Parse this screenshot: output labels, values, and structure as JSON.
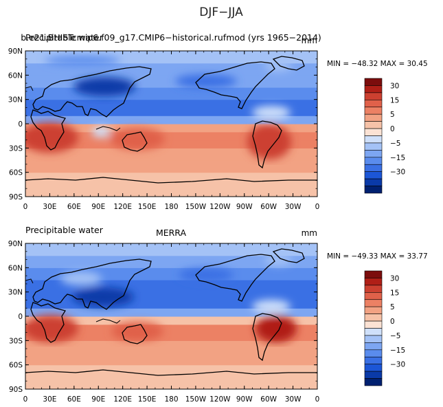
{
  "figure_title": "DJF−JJA",
  "colors": {
    "levels": [
      "#002070",
      "#0a3aa8",
      "#1c56d6",
      "#3a70e4",
      "#5a8ced",
      "#7da6f2",
      "#a4c2f6",
      "#cfe0fa",
      "#fbe2d4",
      "#f6c2a8",
      "#f2a283",
      "#ec8164",
      "#e0614a",
      "#cc4030",
      "#b01f17",
      "#7c0d0d"
    ],
    "land_outline": "#000000",
    "background": "#ffffff"
  },
  "colorbar_labels": [
    "30",
    "15",
    "5",
    "0",
    "−5",
    "−15",
    "−30"
  ],
  "panels": [
    {
      "id": "model",
      "left_title": "Precipitable water",
      "center_title": "b.e21.BHISTcmip6.f09_g17.CMIP6−historical.rufmod (yrs 1965−2014)",
      "units": "mm",
      "stats": "MIN = −48.32  MAX =  30.45"
    },
    {
      "id": "obs",
      "left_title": "Precipitable water",
      "center_title": "MERRA",
      "units": "mm",
      "stats": "MIN = −49.33  MAX =  33.77"
    }
  ],
  "chart_data": [
    {
      "type": "heatmap",
      "title": "DJF−JJA",
      "subtitle": "b.e21.BHISTcmip6.f09_g17.CMIP6−historical.rufmod (yrs 1965−2014)",
      "variable": "Precipitable water",
      "units": "mm",
      "x_ticks": [
        "0",
        "30E",
        "60E",
        "90E",
        "120E",
        "150E",
        "180",
        "150W",
        "120W",
        "90W",
        "60W",
        "30W",
        "0"
      ],
      "y_ticks": [
        "90N",
        "60N",
        "30N",
        "0",
        "30S",
        "60S",
        "90S"
      ],
      "xlim": [
        0,
        360
      ],
      "ylim": [
        -90,
        90
      ],
      "levels": [
        -35,
        -30,
        -25,
        -20,
        -15,
        -10,
        -5,
        -2.5,
        0,
        2.5,
        5,
        10,
        15,
        20,
        25,
        30,
        35
      ],
      "colorbar_ticks": [
        30,
        15,
        5,
        0,
        -5,
        -15,
        -30
      ],
      "zonal_mean_estimate": {
        "lat": [
          -90,
          -75,
          -60,
          -45,
          -30,
          -20,
          -10,
          0,
          10,
          20,
          30,
          45,
          60,
          75,
          90
        ],
        "value": [
          2,
          3,
          4,
          7,
          12,
          14,
          12,
          -2,
          -14,
          -20,
          -18,
          -12,
          -7,
          -4,
          -2
        ]
      },
      "min": -48.32,
      "max": 30.45
    },
    {
      "type": "heatmap",
      "title": "DJF−JJA",
      "subtitle": "MERRA",
      "variable": "Precipitable water",
      "units": "mm",
      "x_ticks": [
        "0",
        "30E",
        "60E",
        "90E",
        "120E",
        "150E",
        "180",
        "150W",
        "120W",
        "90W",
        "60W",
        "30W",
        "0"
      ],
      "y_ticks": [
        "90N",
        "60N",
        "30N",
        "0",
        "30S",
        "60S",
        "90S"
      ],
      "xlim": [
        0,
        360
      ],
      "ylim": [
        -90,
        90
      ],
      "levels": [
        -35,
        -30,
        -25,
        -20,
        -15,
        -10,
        -5,
        -2.5,
        0,
        2.5,
        5,
        10,
        15,
        20,
        25,
        30,
        35
      ],
      "colorbar_ticks": [
        30,
        15,
        5,
        0,
        -5,
        -15,
        -30
      ],
      "zonal_mean_estimate": {
        "lat": [
          -90,
          -75,
          -60,
          -45,
          -30,
          -20,
          -10,
          0,
          10,
          20,
          30,
          45,
          60,
          75,
          90
        ],
        "value": [
          2,
          3,
          4,
          7,
          12,
          13,
          11,
          -2,
          -13,
          -19,
          -19,
          -13,
          -8,
          -4,
          -2
        ]
      },
      "min": -49.33,
      "max": 33.77
    }
  ]
}
